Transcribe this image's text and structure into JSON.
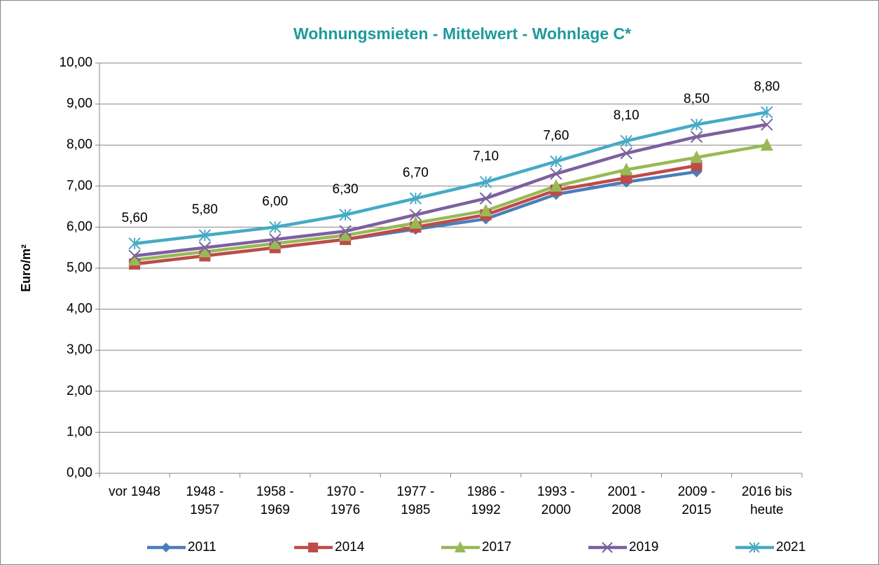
{
  "chart_data": {
    "type": "line",
    "title": "Wohnungsmieten - Mittelwert - Wohnlage C*",
    "y_label": "Euro/m²",
    "categories": [
      "vor 1948",
      "1948 -\n1957",
      "1958 -\n1969",
      "1970 -\n1976",
      "1977 -\n1985",
      "1986 -\n1992",
      "1993 -\n2000",
      "2001 -\n2008",
      "2009 -\n2015",
      "2016 bis\nheute"
    ],
    "series": [
      {
        "name": "2011",
        "color": "#4a7ebb",
        "marker": "diamond",
        "values": [
          5.1,
          5.3,
          5.5,
          5.7,
          5.95,
          6.2,
          6.8,
          7.1,
          7.35,
          null
        ]
      },
      {
        "name": "2014",
        "color": "#be4b48",
        "marker": "square",
        "values": [
          5.1,
          5.3,
          5.5,
          5.7,
          6.0,
          6.3,
          6.9,
          7.2,
          7.5,
          null
        ]
      },
      {
        "name": "2017",
        "color": "#98b954",
        "marker": "triangle",
        "values": [
          5.2,
          5.4,
          5.6,
          5.8,
          6.1,
          6.4,
          7.0,
          7.4,
          7.7,
          8.0
        ]
      },
      {
        "name": "2019",
        "color": "#7d60a0",
        "marker": "x",
        "values": [
          5.3,
          5.5,
          5.7,
          5.9,
          6.3,
          6.7,
          7.3,
          7.8,
          8.2,
          8.5
        ]
      },
      {
        "name": "2021",
        "color": "#46aac5",
        "marker": "star",
        "values": [
          5.6,
          5.8,
          6.0,
          6.3,
          6.7,
          7.1,
          7.6,
          8.1,
          8.5,
          8.8
        ],
        "value_labels": [
          "5,60",
          "5,80",
          "6,00",
          "6,30",
          "6,70",
          "7,10",
          "7,60",
          "8,10",
          "8,50",
          "8,80"
        ]
      }
    ],
    "ylim": [
      0,
      10
    ],
    "yticks": [
      {
        "value": 0,
        "label": "0,00"
      },
      {
        "value": 1,
        "label": "1,00"
      },
      {
        "value": 2,
        "label": "2,00"
      },
      {
        "value": 3,
        "label": "3,00"
      },
      {
        "value": 4,
        "label": "4,00"
      },
      {
        "value": 5,
        "label": "5,00"
      },
      {
        "value": 6,
        "label": "6,00"
      },
      {
        "value": 7,
        "label": "7,00"
      },
      {
        "value": 8,
        "label": "8,00"
      },
      {
        "value": 9,
        "label": "9,00"
      },
      {
        "value": 10,
        "label": "10,00"
      }
    ],
    "grid": true,
    "legend": "bottom"
  }
}
